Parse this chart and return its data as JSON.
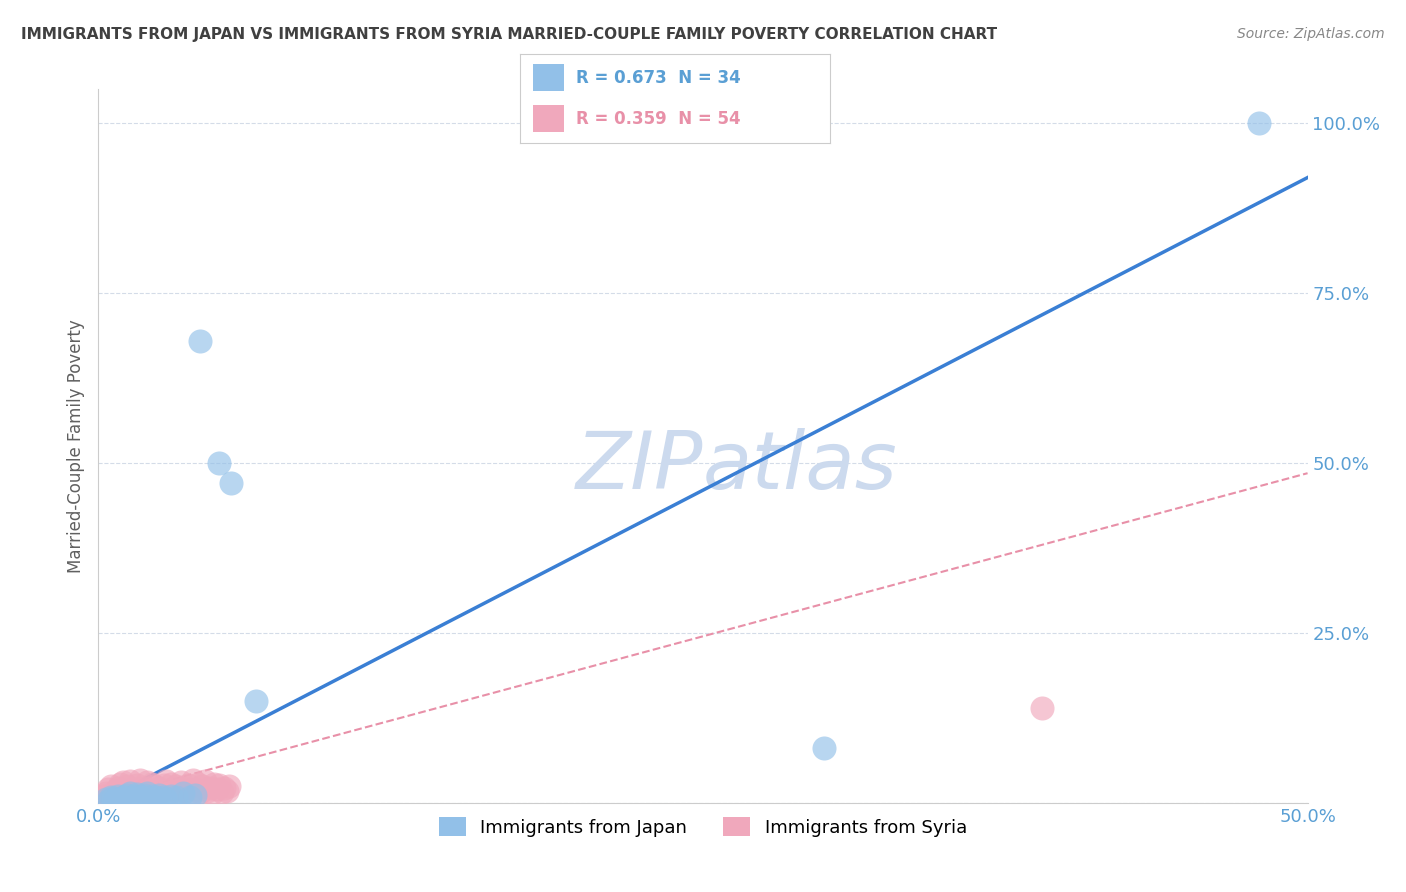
{
  "title": "IMMIGRANTS FROM JAPAN VS IMMIGRANTS FROM SYRIA MARRIED-COUPLE FAMILY POVERTY CORRELATION CHART",
  "source": "Source: ZipAtlas.com",
  "ylabel": "Married-Couple Family Poverty",
  "xlim": [
    0.0,
    0.5
  ],
  "ylim": [
    0.0,
    1.05
  ],
  "xticks": [
    0.0,
    0.1,
    0.2,
    0.3,
    0.4,
    0.5
  ],
  "xticklabels": [
    "0.0%",
    "",
    "",
    "",
    "",
    "50.0%"
  ],
  "ytick_positions": [
    0.0,
    0.25,
    0.5,
    0.75,
    1.0
  ],
  "yticklabels_right": [
    "",
    "25.0%",
    "50.0%",
    "75.0%",
    "100.0%"
  ],
  "japan_R": 0.673,
  "japan_N": 34,
  "syria_R": 0.359,
  "syria_N": 54,
  "japan_color": "#92c0e8",
  "syria_color": "#f0a8bc",
  "japan_line_color": "#3a7fd4",
  "syria_line_color": "#e890a8",
  "background_color": "#ffffff",
  "watermark": "ZIPAtlas",
  "watermark_color": "#ccdaee",
  "title_color": "#404040",
  "axis_label_color": "#606060",
  "tick_color": "#5a9fd4",
  "japan_scatter_x": [
    0.003,
    0.005,
    0.004,
    0.006,
    0.007,
    0.008,
    0.009,
    0.01,
    0.012,
    0.011,
    0.013,
    0.014,
    0.015,
    0.016,
    0.018,
    0.017,
    0.019,
    0.02,
    0.022,
    0.024,
    0.025,
    0.027,
    0.028,
    0.03,
    0.032,
    0.035,
    0.038,
    0.04,
    0.042,
    0.05,
    0.055,
    0.065,
    0.3,
    0.48
  ],
  "japan_scatter_y": [
    0.005,
    0.008,
    0.003,
    0.007,
    0.004,
    0.01,
    0.006,
    0.009,
    0.012,
    0.008,
    0.015,
    0.007,
    0.01,
    0.013,
    0.008,
    0.005,
    0.012,
    0.015,
    0.01,
    0.008,
    0.012,
    0.009,
    0.006,
    0.01,
    0.008,
    0.014,
    0.009,
    0.011,
    0.68,
    0.5,
    0.47,
    0.15,
    0.08,
    1.0
  ],
  "syria_scatter_x": [
    0.002,
    0.003,
    0.004,
    0.005,
    0.006,
    0.007,
    0.008,
    0.009,
    0.01,
    0.011,
    0.012,
    0.013,
    0.014,
    0.015,
    0.016,
    0.017,
    0.018,
    0.019,
    0.02,
    0.021,
    0.022,
    0.023,
    0.024,
    0.025,
    0.026,
    0.027,
    0.028,
    0.029,
    0.03,
    0.031,
    0.032,
    0.033,
    0.034,
    0.035,
    0.036,
    0.037,
    0.038,
    0.039,
    0.04,
    0.041,
    0.042,
    0.043,
    0.044,
    0.045,
    0.046,
    0.047,
    0.048,
    0.049,
    0.05,
    0.051,
    0.052,
    0.053,
    0.054,
    0.39
  ],
  "syria_scatter_y": [
    0.01,
    0.015,
    0.02,
    0.025,
    0.012,
    0.018,
    0.022,
    0.028,
    0.03,
    0.016,
    0.024,
    0.032,
    0.014,
    0.02,
    0.026,
    0.034,
    0.018,
    0.022,
    0.03,
    0.016,
    0.028,
    0.024,
    0.012,
    0.022,
    0.018,
    0.026,
    0.032,
    0.014,
    0.028,
    0.02,
    0.024,
    0.016,
    0.03,
    0.022,
    0.018,
    0.026,
    0.012,
    0.034,
    0.02,
    0.028,
    0.016,
    0.024,
    0.032,
    0.018,
    0.022,
    0.014,
    0.028,
    0.02,
    0.026,
    0.016,
    0.022,
    0.018,
    0.024,
    0.14
  ],
  "japan_line_slope": 1.84,
  "japan_line_intercept": 0.0,
  "syria_line_slope": 0.96,
  "syria_line_intercept": 0.005,
  "grid_color": "#d4dce8",
  "legend_box_japan_color": "#92c0e8",
  "legend_box_syria_color": "#f0a8bc",
  "legend_color_japan": "#5a9fd4",
  "legend_color_syria": "#e890a8"
}
